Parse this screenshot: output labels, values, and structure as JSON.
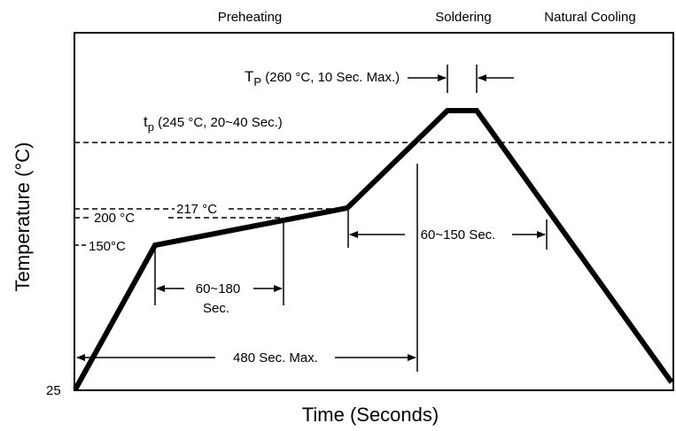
{
  "phases": {
    "preheating": "Preheating",
    "soldering": "Soldering",
    "cooling": "Natural Cooling"
  },
  "axes": {
    "ylabel": "Temperature (°C)",
    "xlabel": "Time (Seconds)",
    "y_origin": "25"
  },
  "annotations": {
    "tp_peak_main": "T",
    "tp_peak_sub": "P",
    "tp_peak_rest": " (260 °C, 10 Sec. Max.)",
    "tp_liq_main": "t",
    "tp_liq_sub": "p",
    "tp_liq_rest": " (245 °C, 20~40 Sec.)",
    "t217": "217 °C",
    "t200": "200 °C",
    "t150": "150°C",
    "d60_150": "60~150 Sec.",
    "d60_180_line1": "60~180",
    "d60_180_line2": "Sec.",
    "d480": "480 Sec. Max."
  }
}
